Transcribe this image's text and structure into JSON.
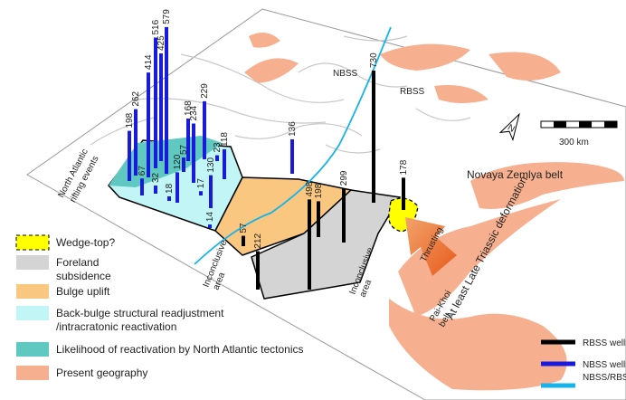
{
  "map": {
    "annotations": {
      "rifting": [
        "North Atlantic",
        "rifting events"
      ],
      "nbss": "NBSS",
      "rbss": "RBSS",
      "north": "N",
      "scale": "300 km",
      "novaya": "Novaya Zemlya belt",
      "triassic": "At least Late Triassic deformation",
      "thrusting": "Thrusting",
      "paikhoi": [
        "Pai-Khoi",
        "belt"
      ],
      "inconclusive_west": [
        "Inconclusive",
        "area"
      ],
      "inconclusive_east": [
        "Inconclusive",
        "area"
      ]
    },
    "wells": {
      "nbss": {
        "values": [
          198,
          262,
          414,
          516,
          425,
          579,
          67,
          32,
          18,
          120,
          57,
          168,
          234,
          229,
          17,
          130,
          14,
          23,
          118,
          136
        ]
      },
      "rbss": {
        "values": [
          57,
          212,
          498,
          198,
          299,
          730,
          178
        ]
      }
    }
  },
  "legend": {
    "zones": [
      {
        "lines": [
          "Wedge-top?"
        ],
        "color": "#ffff00"
      },
      {
        "lines": [
          "Foreland",
          "subsidence"
        ],
        "color": "#d4d4d4"
      },
      {
        "lines": [
          "Bulge uplift"
        ],
        "color": "#f9c77f"
      },
      {
        "lines": [
          "Back-bulge structural readjustment",
          "/intracratonic reactivation"
        ],
        "color": "#c2f5f5"
      },
      {
        "lines": [
          "Likelihood of reactivation by North Atlantic tectonics"
        ],
        "color": "#5fc8c0"
      },
      {
        "lines": [
          "Present geography"
        ],
        "color": "#f7b08f"
      }
    ],
    "wells": [
      {
        "label": "RBSS wells",
        "color": "#000000"
      },
      {
        "label": "NBSS wells",
        "color": "#1a1adc"
      },
      {
        "label": "NBSS/RBSS Boundary",
        "color": "#17b4ec"
      }
    ]
  }
}
